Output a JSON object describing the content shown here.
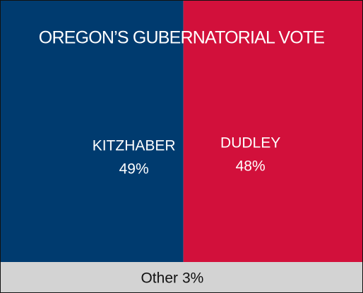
{
  "chart_data": {
    "type": "proportional_area",
    "title": "OREGON’S GUBERNATORIAL VOTE",
    "categories": [
      "KITZHABER",
      "DUDLEY",
      "Other"
    ],
    "values": [
      49,
      48,
      3
    ],
    "value_labels": [
      "49%",
      "48%",
      "3%"
    ],
    "colors": [
      "#003b6f",
      "#d2103b",
      "#d3d3d3"
    ]
  }
}
